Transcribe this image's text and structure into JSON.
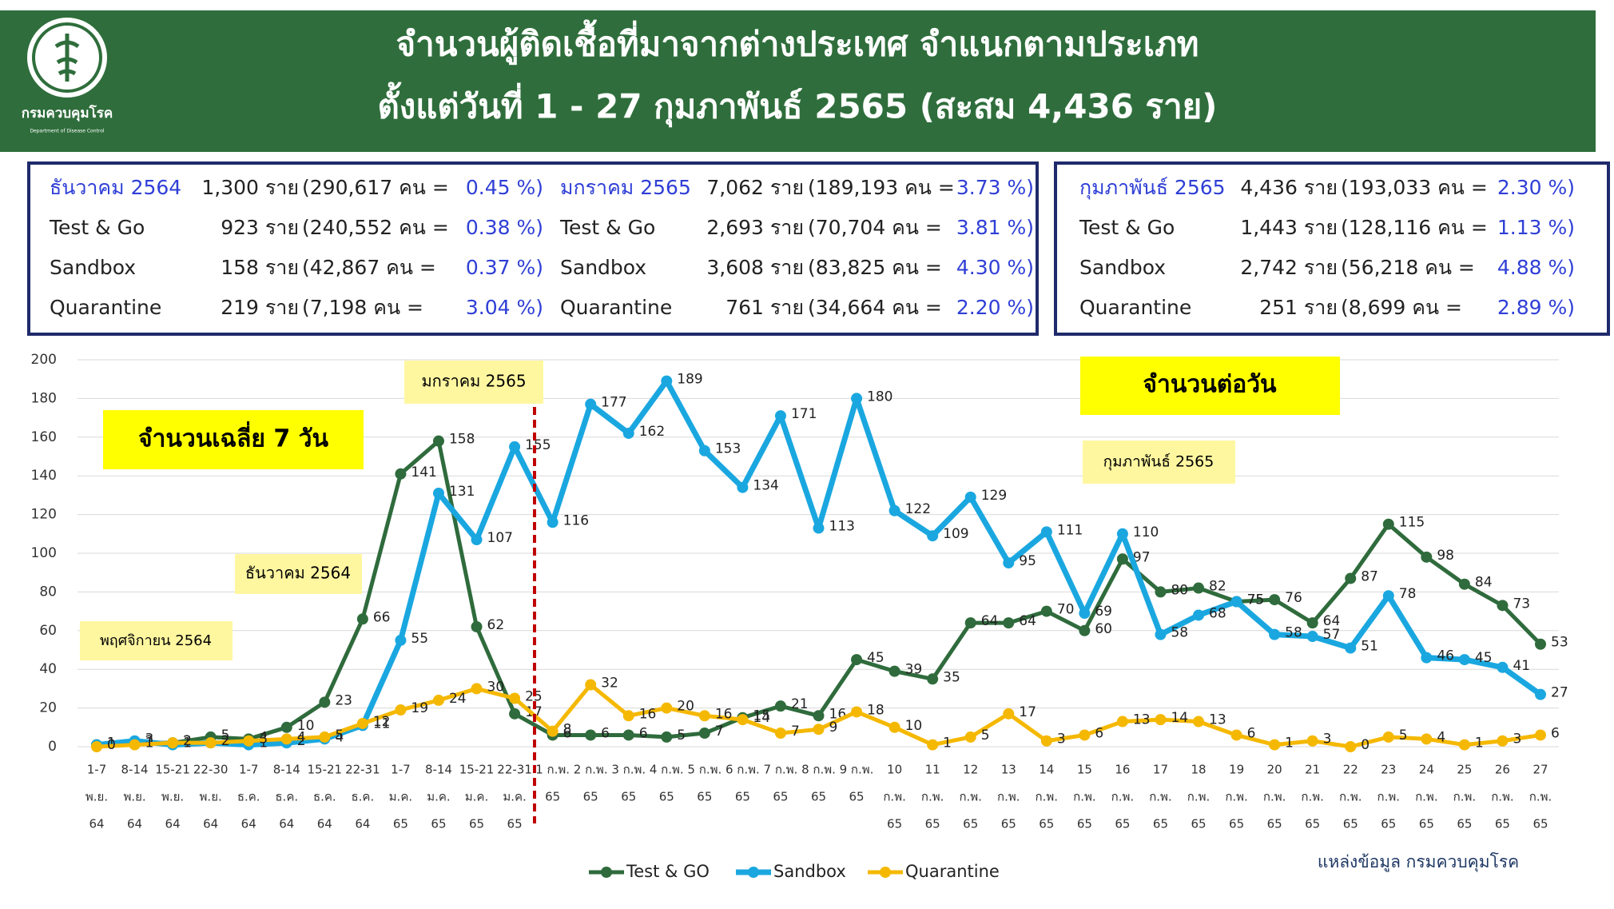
{
  "header": {
    "title_lines": [
      "จำนวนผู้ติดเชื้อที่มาจากต่างประเทศ จำแนกตามประเภท",
      "ตั้งแต่วันที่  1 - 27  กุมภาพันธ์  2565 (สะสม 4,436 ราย)"
    ],
    "logo_text": "กรมควบคุมโรค",
    "logo_subtext": "Department of Disease Control"
  },
  "summary": {
    "columns": [
      [
        [
          "ธันวาคม 2564",
          "1,300 ราย",
          "(290,617 คน =",
          "0.45 %)"
        ],
        [
          "Test & Go",
          "923 ราย",
          "(240,552 คน =",
          "0.38 %)"
        ],
        [
          "Sandbox",
          "158 ราย",
          "(42,867 คน =",
          "0.37 %)"
        ],
        [
          "Quarantine",
          "219 ราย",
          "(7,198 คน =",
          "3.04 %)"
        ]
      ],
      [
        [
          "มกราคม 2565",
          "7,062 ราย",
          "(189,193 คน =",
          "3.73 %)"
        ],
        [
          "Test & Go",
          "2,693 ราย",
          "(70,704 คน =",
          "3.81 %)"
        ],
        [
          "Sandbox",
          "3,608 ราย",
          "(83,825 คน =",
          "4.30 %)"
        ],
        [
          "Quarantine",
          "761 ราย",
          "(34,664 คน =",
          "2.20 %)"
        ]
      ],
      [
        [
          "กุมภาพันธ์ 2565",
          "4,436 ราย",
          "(193,033 คน =",
          "2.30 %)"
        ],
        [
          "Test & Go",
          "1,443 ราย",
          "(128,116 คน =",
          "1.13 %)"
        ],
        [
          "Sandbox",
          "2,742 ราย",
          "(56,218 คน =",
          "4.88 %)"
        ],
        [
          "Quarantine",
          "251 ราย",
          "(8,699 คน =",
          "2.89 %)"
        ]
      ]
    ]
  },
  "chart_data": {
    "type": "line",
    "categories": [
      [
        "1-7",
        "พ.ย.",
        "64"
      ],
      [
        "8-14",
        "พ.ย.",
        "64"
      ],
      [
        "15-21",
        "พ.ย.",
        "64"
      ],
      [
        "22-30",
        "พ.ย.",
        "64"
      ],
      [
        "1-7",
        "ธ.ค.",
        "64"
      ],
      [
        "8-14",
        "ธ.ค.",
        "64"
      ],
      [
        "15-21",
        "ธ.ค.",
        "64"
      ],
      [
        "22-31",
        "ธ.ค.",
        "64"
      ],
      [
        "1-7",
        "ม.ค.",
        "65"
      ],
      [
        "8-14",
        "ม.ค.",
        "65"
      ],
      [
        "15-21",
        "ม.ค.",
        "65"
      ],
      [
        "22-31",
        "ม.ค.",
        "65"
      ],
      [
        "1 ก.พ.",
        "65"
      ],
      [
        "2 ก.พ.",
        "65"
      ],
      [
        "3 ก.พ.",
        "65"
      ],
      [
        "4 ก.พ.",
        "65"
      ],
      [
        "5 ก.พ.",
        "65"
      ],
      [
        "6 ก.พ.",
        "65"
      ],
      [
        "7 ก.พ.",
        "65"
      ],
      [
        "8 ก.พ.",
        "65"
      ],
      [
        "9 ก.พ.",
        "65"
      ],
      [
        "10",
        "ก.พ.",
        "65"
      ],
      [
        "11",
        "ก.พ.",
        "65"
      ],
      [
        "12",
        "ก.พ.",
        "65"
      ],
      [
        "13",
        "ก.พ.",
        "65"
      ],
      [
        "14",
        "ก.พ.",
        "65"
      ],
      [
        "15",
        "ก.พ.",
        "65"
      ],
      [
        "16",
        "ก.พ.",
        "65"
      ],
      [
        "17",
        "ก.พ.",
        "65"
      ],
      [
        "18",
        "ก.พ.",
        "65"
      ],
      [
        "19",
        "ก.พ.",
        "65"
      ],
      [
        "20",
        "ก.พ.",
        "65"
      ],
      [
        "21",
        "ก.พ.",
        "65"
      ],
      [
        "22",
        "ก.พ.",
        "65"
      ],
      [
        "23",
        "ก.พ.",
        "65"
      ],
      [
        "24",
        "ก.พ.",
        "65"
      ],
      [
        "25",
        "ก.พ.",
        "65"
      ],
      [
        "26",
        "ก.พ.",
        "65"
      ],
      [
        "27",
        "ก.พ.",
        "65"
      ]
    ],
    "series": [
      {
        "name": "Test & GO",
        "color": "#2f6b3c",
        "values": [
          1,
          2,
          2,
          5,
          4,
          10,
          23,
          66,
          141,
          158,
          62,
          17,
          6,
          6,
          6,
          5,
          7,
          15,
          21,
          16,
          45,
          39,
          35,
          64,
          64,
          70,
          60,
          97,
          80,
          82,
          75,
          76,
          64,
          87,
          115,
          98,
          84,
          73,
          53
        ]
      },
      {
        "name": "Sandbox",
        "color": "#1aa7e0",
        "values": [
          1,
          3,
          1,
          2,
          1,
          2,
          4,
          11,
          55,
          131,
          107,
          155,
          116,
          177,
          162,
          189,
          153,
          134,
          171,
          113,
          180,
          122,
          109,
          129,
          95,
          111,
          69,
          110,
          58,
          68,
          75,
          58,
          57,
          51,
          78,
          46,
          45,
          41,
          27
        ]
      },
      {
        "name": "Quarantine",
        "color": "#f5b800",
        "values": [
          0,
          1,
          2,
          2,
          3,
          4,
          5,
          12,
          19,
          24,
          30,
          25,
          8,
          32,
          16,
          20,
          16,
          14,
          7,
          9,
          18,
          10,
          1,
          5,
          17,
          3,
          6,
          13,
          14,
          13,
          6,
          1,
          3,
          0,
          5,
          4,
          1,
          3,
          6
        ]
      }
    ],
    "ylim": [
      0,
      200
    ],
    "yticks": [
      0,
      20,
      40,
      60,
      80,
      100,
      120,
      140,
      160,
      180,
      200
    ],
    "grid": true,
    "legend": "bottom",
    "annotations": [
      "มกราคม 2565",
      "จำนวนเฉลี่ย 7 วัน",
      "ธันวาคม 2564",
      "พฤศจิกายน 2564",
      "จำนวนต่อวัน",
      "กุมภาพันธ์ 2565"
    ],
    "source": "แหล่งข้อมูล กรมควบคุมโรค"
  }
}
